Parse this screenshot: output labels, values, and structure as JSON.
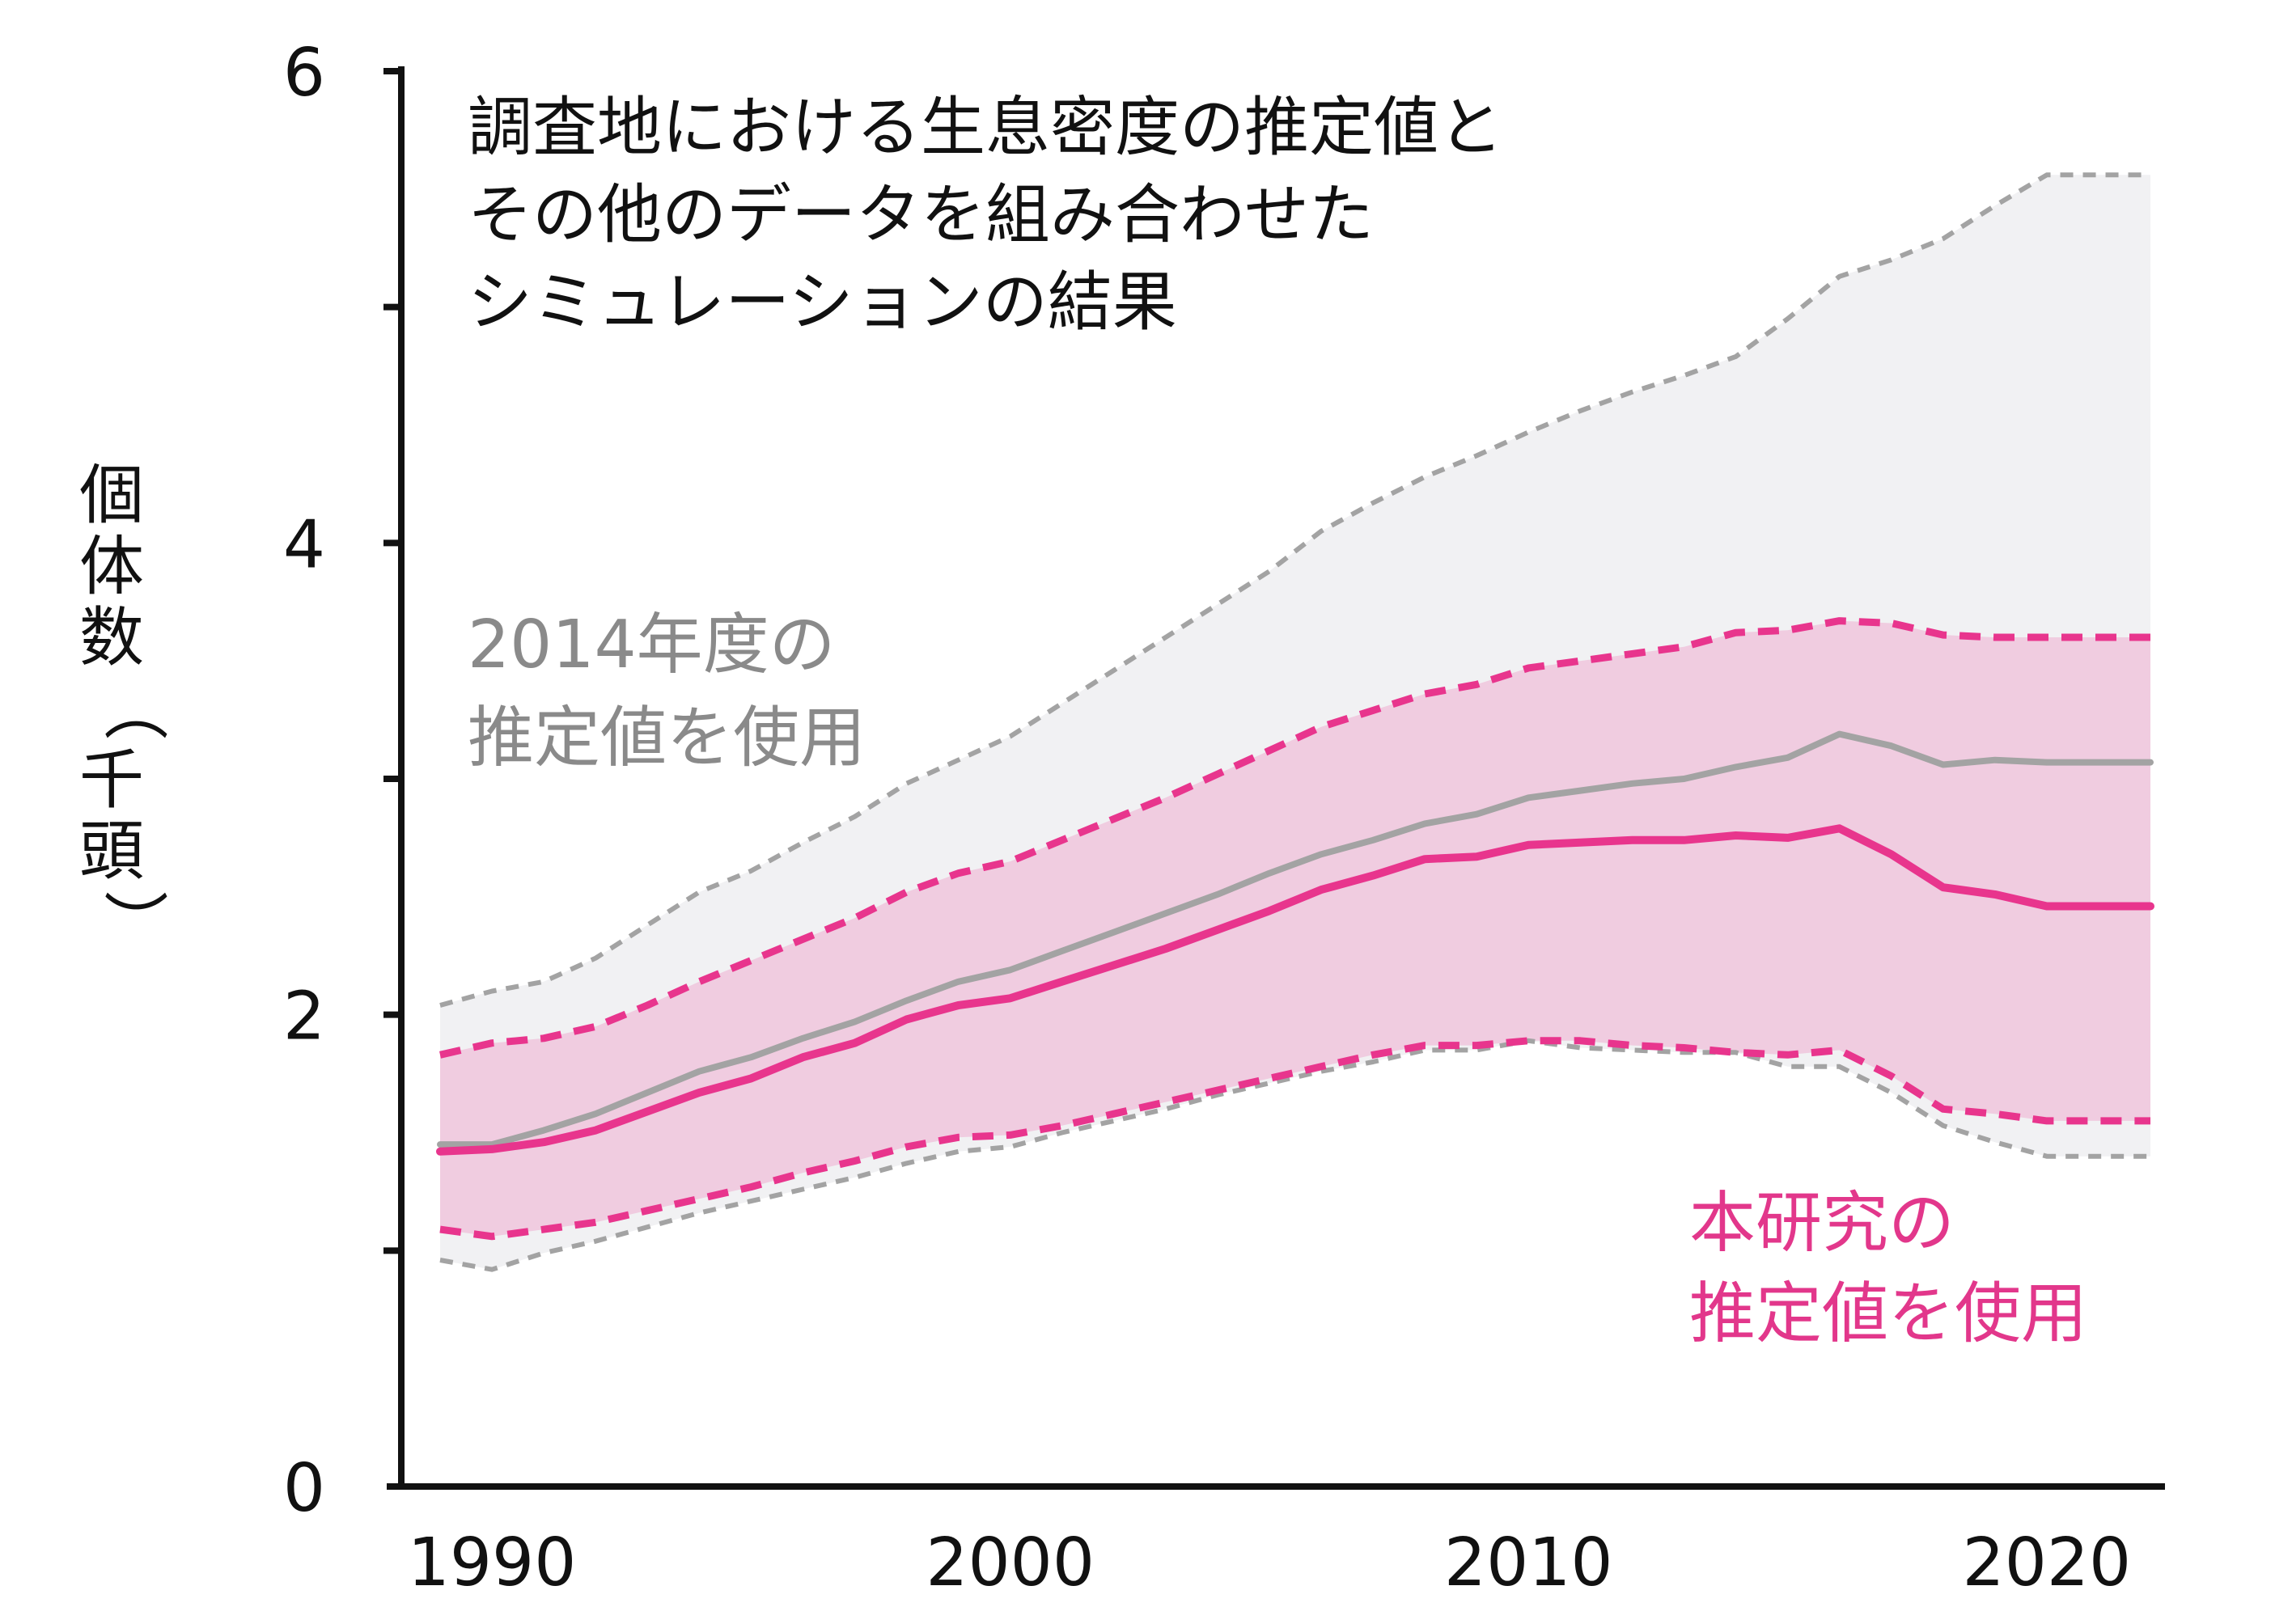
{
  "chart_data": {
    "type": "line",
    "title_lines": [
      "調査地における生息密度の推定値と",
      "その他のデータを組み合わせた",
      "シミュレーションの結果"
    ],
    "ylabel": "個体数（千頭）",
    "xlabel": "",
    "xlim": [
      1989,
      2022
    ],
    "ylim": [
      0,
      6
    ],
    "x_ticks": [
      1990,
      2000,
      2010,
      2020
    ],
    "y_ticks": [
      0,
      2,
      4,
      6
    ],
    "x": [
      1989,
      1990,
      1991,
      1992,
      1993,
      1994,
      1995,
      1996,
      1997,
      1998,
      1999,
      2000,
      2001,
      2002,
      2003,
      2004,
      2005,
      2006,
      2007,
      2008,
      2009,
      2010,
      2011,
      2012,
      2013,
      2014,
      2015,
      2016,
      2017,
      2018,
      2019,
      2020,
      2021,
      2022
    ],
    "series": [
      {
        "name": "2014年度の推定値を使用",
        "color": "#a3a3a3",
        "band_color": "#f1f1f3",
        "annotation": [
          "2014年度の",
          "推定値を使用"
        ],
        "values": [
          1.45,
          1.45,
          1.51,
          1.58,
          1.67,
          1.76,
          1.82,
          1.9,
          1.97,
          2.06,
          2.14,
          2.19,
          2.27,
          2.35,
          2.43,
          2.51,
          2.6,
          2.68,
          2.74,
          2.81,
          2.85,
          2.92,
          2.95,
          2.98,
          3.0,
          3.05,
          3.09,
          3.19,
          3.14,
          3.06,
          3.08,
          3.07,
          3.07,
          3.07
        ],
        "lower": [
          0.96,
          0.92,
          0.99,
          1.04,
          1.1,
          1.16,
          1.21,
          1.26,
          1.31,
          1.37,
          1.42,
          1.44,
          1.5,
          1.55,
          1.6,
          1.66,
          1.71,
          1.76,
          1.8,
          1.85,
          1.85,
          1.89,
          1.86,
          1.85,
          1.84,
          1.84,
          1.78,
          1.78,
          1.67,
          1.53,
          1.46,
          1.4,
          1.4,
          1.4
        ],
        "upper": [
          2.04,
          2.1,
          2.14,
          2.24,
          2.38,
          2.52,
          2.61,
          2.73,
          2.84,
          2.98,
          3.08,
          3.18,
          3.32,
          3.46,
          3.6,
          3.74,
          3.88,
          4.05,
          4.17,
          4.28,
          4.37,
          4.47,
          4.56,
          4.64,
          4.71,
          4.79,
          4.95,
          5.13,
          5.2,
          5.29,
          5.43,
          5.56,
          5.56,
          5.56
        ]
      },
      {
        "name": "本研究の推定値を使用",
        "color": "#e8358d",
        "band_color": "#f0cce0",
        "annotation": [
          "本研究の",
          "推定値を使用"
        ],
        "values": [
          1.42,
          1.43,
          1.46,
          1.51,
          1.59,
          1.67,
          1.73,
          1.82,
          1.88,
          1.98,
          2.04,
          2.07,
          2.14,
          2.21,
          2.28,
          2.36,
          2.44,
          2.53,
          2.59,
          2.66,
          2.67,
          2.72,
          2.73,
          2.74,
          2.74,
          2.76,
          2.75,
          2.79,
          2.68,
          2.54,
          2.51,
          2.46,
          2.46,
          2.46
        ],
        "lower": [
          1.09,
          1.06,
          1.09,
          1.12,
          1.17,
          1.22,
          1.27,
          1.33,
          1.38,
          1.44,
          1.48,
          1.49,
          1.53,
          1.58,
          1.63,
          1.68,
          1.73,
          1.78,
          1.83,
          1.87,
          1.87,
          1.89,
          1.89,
          1.87,
          1.86,
          1.84,
          1.83,
          1.85,
          1.74,
          1.6,
          1.58,
          1.55,
          1.55,
          1.55
        ],
        "upper": [
          1.83,
          1.88,
          1.9,
          1.95,
          2.04,
          2.14,
          2.23,
          2.32,
          2.41,
          2.52,
          2.6,
          2.65,
          2.74,
          2.83,
          2.92,
          3.02,
          3.12,
          3.22,
          3.29,
          3.36,
          3.4,
          3.47,
          3.5,
          3.53,
          3.56,
          3.62,
          3.63,
          3.67,
          3.66,
          3.61,
          3.6,
          3.6,
          3.6,
          3.6
        ]
      }
    ]
  }
}
